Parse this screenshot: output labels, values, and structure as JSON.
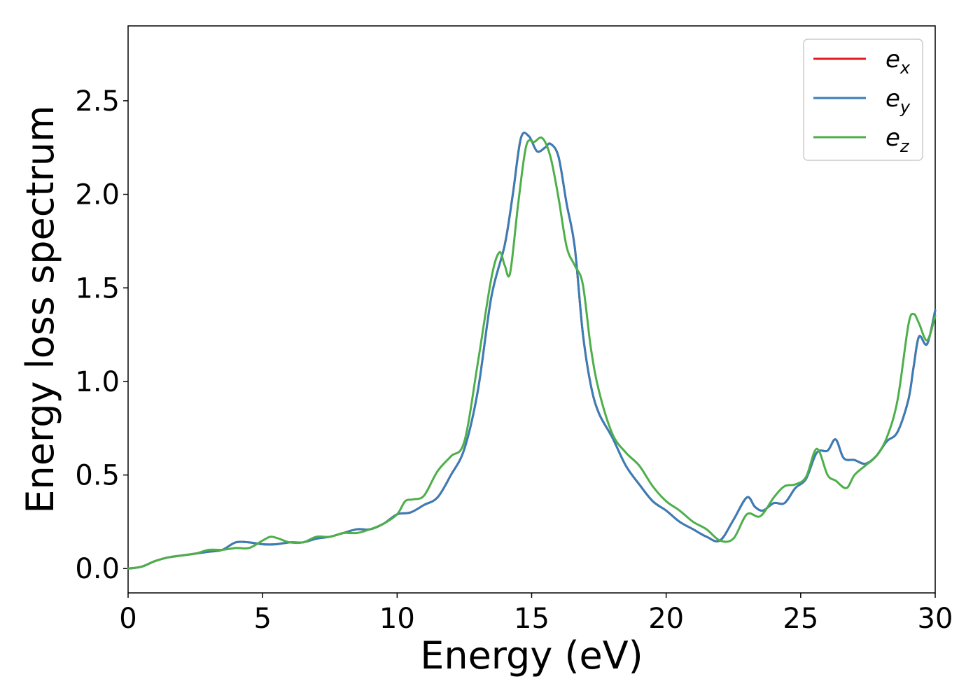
{
  "chart_data": {
    "type": "line",
    "xlabel": "Energy (eV)",
    "ylabel": "Energy loss spectrum",
    "xlim": [
      0,
      30
    ],
    "ylim": [
      -0.13,
      2.9
    ],
    "xticks": [
      0,
      5,
      10,
      15,
      20,
      25,
      30
    ],
    "xtick_labels": [
      "0",
      "5",
      "10",
      "15",
      "20",
      "25",
      "30"
    ],
    "yticks": [
      0.0,
      0.5,
      1.0,
      1.5,
      2.0,
      2.5
    ],
    "ytick_labels": [
      "0.0",
      "0.5",
      "1.0",
      "1.5",
      "2.0",
      "2.5"
    ],
    "grid": false,
    "legend_position": "top-right",
    "series": [
      {
        "name": "e",
        "subscript": "x",
        "color": "#e41a1c",
        "x": [
          0,
          0.5,
          1,
          1.5,
          2,
          2.5,
          3,
          3.5,
          4,
          4.5,
          5,
          5.5,
          6,
          6.5,
          7,
          7.5,
          8,
          8.5,
          9,
          9.5,
          10,
          10.5,
          11,
          11.5,
          12,
          12.5,
          13,
          13.5,
          14,
          14.3,
          14.6,
          14.9,
          15.2,
          15.5,
          15.7,
          16,
          16.3,
          16.6,
          16.9,
          17.2,
          17.5,
          18,
          18.5,
          19,
          19.5,
          20,
          20.5,
          21,
          21.5,
          22,
          22.5,
          23,
          23.3,
          23.6,
          24,
          24.4,
          24.8,
          25.2,
          25.6,
          26,
          26.3,
          26.6,
          27,
          27.4,
          27.8,
          28.2,
          28.6,
          29,
          29.2,
          29.4,
          29.7,
          30
        ],
        "values": [
          0.0,
          0.01,
          0.04,
          0.06,
          0.07,
          0.08,
          0.09,
          0.1,
          0.14,
          0.14,
          0.13,
          0.13,
          0.14,
          0.14,
          0.16,
          0.17,
          0.19,
          0.21,
          0.21,
          0.24,
          0.29,
          0.3,
          0.34,
          0.38,
          0.5,
          0.64,
          0.95,
          1.45,
          1.73,
          2.0,
          2.3,
          2.31,
          2.23,
          2.25,
          2.27,
          2.2,
          1.95,
          1.72,
          1.26,
          0.98,
          0.83,
          0.7,
          0.55,
          0.45,
          0.36,
          0.31,
          0.25,
          0.21,
          0.17,
          0.15,
          0.26,
          0.38,
          0.33,
          0.31,
          0.35,
          0.35,
          0.43,
          0.48,
          0.62,
          0.63,
          0.69,
          0.59,
          0.58,
          0.56,
          0.6,
          0.68,
          0.73,
          0.9,
          1.08,
          1.24,
          1.2,
          1.38
        ]
      },
      {
        "name": "e",
        "subscript": "y",
        "color": "#377eb8",
        "x": [
          0,
          0.5,
          1,
          1.5,
          2,
          2.5,
          3,
          3.5,
          4,
          4.5,
          5,
          5.5,
          6,
          6.5,
          7,
          7.5,
          8,
          8.5,
          9,
          9.5,
          10,
          10.5,
          11,
          11.5,
          12,
          12.5,
          13,
          13.5,
          14,
          14.3,
          14.6,
          14.9,
          15.2,
          15.5,
          15.7,
          16,
          16.3,
          16.6,
          16.9,
          17.2,
          17.5,
          18,
          18.5,
          19,
          19.5,
          20,
          20.5,
          21,
          21.5,
          22,
          22.5,
          23,
          23.3,
          23.6,
          24,
          24.4,
          24.8,
          25.2,
          25.6,
          26,
          26.3,
          26.6,
          27,
          27.4,
          27.8,
          28.2,
          28.6,
          29,
          29.2,
          29.4,
          29.7,
          30
        ],
        "values": [
          0.0,
          0.01,
          0.04,
          0.06,
          0.07,
          0.08,
          0.09,
          0.1,
          0.14,
          0.14,
          0.13,
          0.13,
          0.14,
          0.14,
          0.16,
          0.17,
          0.19,
          0.21,
          0.21,
          0.24,
          0.29,
          0.3,
          0.34,
          0.38,
          0.5,
          0.64,
          0.95,
          1.45,
          1.73,
          2.0,
          2.3,
          2.31,
          2.23,
          2.25,
          2.27,
          2.2,
          1.95,
          1.72,
          1.26,
          0.98,
          0.83,
          0.7,
          0.55,
          0.45,
          0.36,
          0.31,
          0.25,
          0.21,
          0.17,
          0.15,
          0.26,
          0.38,
          0.33,
          0.31,
          0.35,
          0.35,
          0.43,
          0.48,
          0.62,
          0.63,
          0.69,
          0.59,
          0.58,
          0.56,
          0.6,
          0.68,
          0.73,
          0.9,
          1.08,
          1.24,
          1.2,
          1.38
        ]
      },
      {
        "name": "e",
        "subscript": "z",
        "color": "#4daf4a",
        "x": [
          0,
          0.5,
          1,
          1.5,
          2,
          2.5,
          3,
          3.5,
          4,
          4.5,
          5,
          5.3,
          5.6,
          6,
          6.5,
          7,
          7.5,
          8,
          8.5,
          9,
          9.5,
          10,
          10.3,
          10.6,
          11,
          11.5,
          12,
          12.5,
          13,
          13.5,
          13.8,
          14,
          14.2,
          14.5,
          14.8,
          15.1,
          15.4,
          15.7,
          16,
          16.3,
          16.6,
          16.9,
          17.2,
          17.5,
          18,
          18.5,
          19,
          19.5,
          20,
          20.5,
          21,
          21.5,
          22,
          22.5,
          23,
          23.5,
          24,
          24.4,
          24.8,
          25.2,
          25.6,
          26,
          26.3,
          26.7,
          27,
          27.4,
          27.8,
          28.2,
          28.6,
          29,
          29.2,
          29.4,
          29.7,
          30
        ],
        "values": [
          0.0,
          0.01,
          0.04,
          0.06,
          0.07,
          0.08,
          0.1,
          0.1,
          0.11,
          0.11,
          0.15,
          0.17,
          0.16,
          0.14,
          0.14,
          0.17,
          0.17,
          0.19,
          0.19,
          0.21,
          0.24,
          0.29,
          0.36,
          0.37,
          0.39,
          0.52,
          0.6,
          0.68,
          1.1,
          1.55,
          1.69,
          1.62,
          1.58,
          1.95,
          2.26,
          2.28,
          2.3,
          2.2,
          1.98,
          1.72,
          1.62,
          1.52,
          1.18,
          0.95,
          0.72,
          0.62,
          0.55,
          0.44,
          0.36,
          0.31,
          0.25,
          0.21,
          0.15,
          0.16,
          0.29,
          0.28,
          0.38,
          0.44,
          0.45,
          0.49,
          0.64,
          0.5,
          0.47,
          0.43,
          0.5,
          0.55,
          0.6,
          0.7,
          0.9,
          1.3,
          1.36,
          1.31,
          1.22,
          1.35
        ]
      }
    ]
  }
}
